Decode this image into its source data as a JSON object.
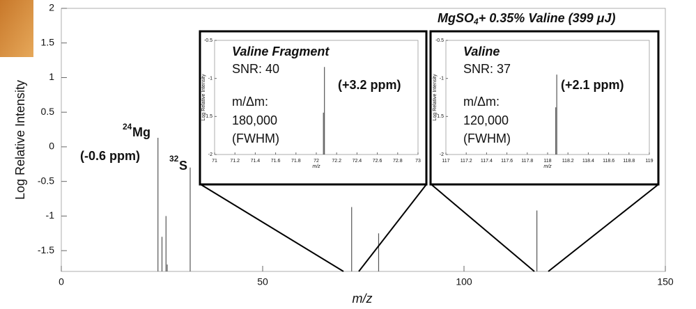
{
  "chart_data": [
    {
      "type": "stem",
      "title": [
        "MgSO",
        "4",
        "+ 0.35% Valine (399 μJ)"
      ],
      "xlabel": "m/z",
      "ylabel": "Log Relative Intensity",
      "xlim": [
        0,
        150
      ],
      "ylim": [
        -1.8,
        2
      ],
      "xticks": [
        0,
        50,
        100,
        150
      ],
      "yticks": [
        -1.5,
        -1,
        -0.5,
        0,
        0.5,
        1,
        1.5,
        2
      ],
      "color": "#555555",
      "x": [
        24,
        25,
        26,
        26.3,
        32,
        72.1,
        78.8,
        118.1
      ],
      "values": [
        0.13,
        -1.3,
        -1.0,
        -1.7,
        -0.3,
        -0.87,
        -1.25,
        -0.92
      ],
      "annotations": [
        "24",
        "Mg",
        "(-0.6 ppm)",
        "32",
        "S"
      ]
    },
    {
      "type": "stem",
      "title": "Valine Fragment",
      "xlabel": "m/z",
      "ylabel": "Log Relative Intensity",
      "xlim": [
        71,
        73
      ],
      "ylim": [
        -2,
        -0.5
      ],
      "xticks": [
        71,
        71.2,
        71.4,
        71.6,
        71.8,
        72,
        72.2,
        72.4,
        72.6,
        72.8,
        73
      ],
      "yticks": [
        -2,
        -1.5,
        -1,
        -0.5
      ],
      "color": "#555555",
      "x": [
        72.07,
        72.08
      ],
      "values": [
        -1.45,
        -0.85
      ],
      "annotations": [
        "SNR: 40",
        "m/Δm:",
        "180,000",
        "(FWHM)",
        "(+3.2 ppm)"
      ]
    },
    {
      "type": "stem",
      "title": "Valine",
      "xlabel": "m/z",
      "ylabel": "Log Relative Intensity",
      "xlim": [
        117,
        119
      ],
      "ylim": [
        -2,
        -0.5
      ],
      "xticks": [
        117,
        117.2,
        117.4,
        117.6,
        117.8,
        118,
        118.2,
        118.4,
        118.6,
        118.8,
        119
      ],
      "yticks": [
        -2,
        -1.5,
        -1,
        -0.5
      ],
      "color": "#555555",
      "x": [
        118.08,
        118.09
      ],
      "values": [
        -1.38,
        -0.95
      ],
      "annotations": [
        "SNR: 37",
        "m/Δm:",
        "120,000",
        "(FWHM)",
        "(+2.1 ppm)"
      ]
    }
  ]
}
